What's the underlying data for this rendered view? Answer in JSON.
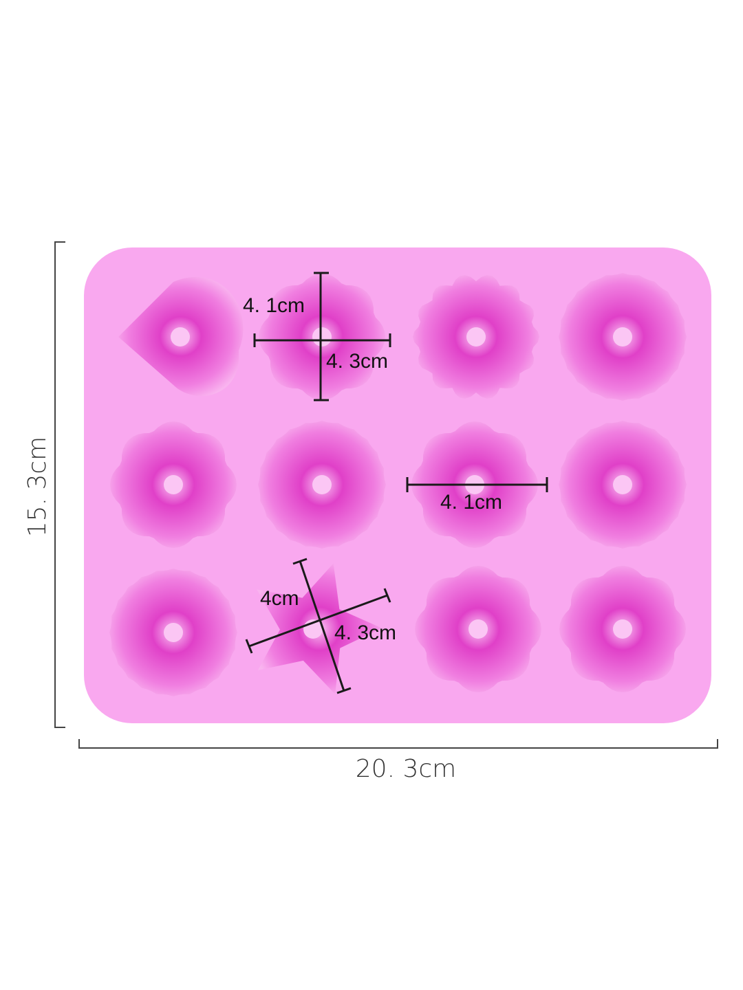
{
  "product": {
    "colors": {
      "tray": "#f9a8ef",
      "cavity": "#e040c8",
      "cavity_light": "#fbc6f4",
      "line": "#1a1a1a"
    },
    "cavity_shapes": [
      "heart",
      "flower",
      "chrysanthemum",
      "rose",
      "flower",
      "round-bundt",
      "flower",
      "round-bundt",
      "round-bundt",
      "star",
      "flower",
      "flower"
    ]
  },
  "dimensions": {
    "height": "15. 3cm",
    "width": "20. 3cm",
    "flower_height": "4. 1cm",
    "flower_width": "4. 3cm",
    "row2_flower_width": "4. 1cm",
    "star_height": "4cm",
    "star_width": "4. 3cm"
  }
}
